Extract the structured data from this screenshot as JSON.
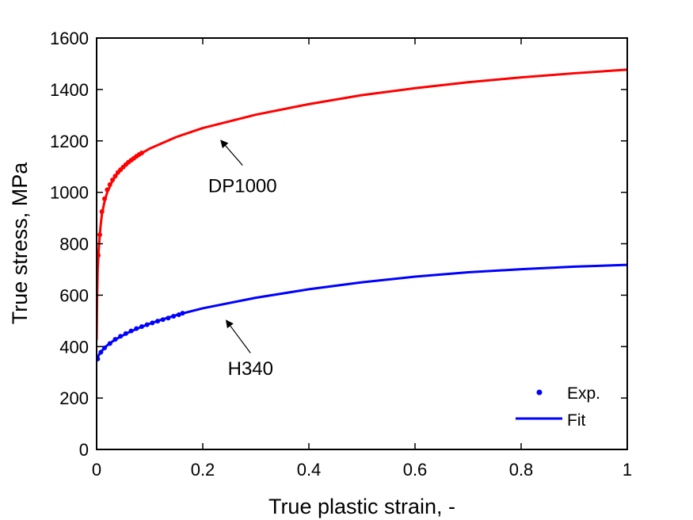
{
  "chart_data": {
    "type": "line",
    "title": "",
    "xlabel": "True plastic strain, -",
    "ylabel": "True stress, MPa",
    "xlim": [
      0,
      1
    ],
    "ylim": [
      0,
      1600
    ],
    "xticks": [
      0,
      0.2,
      0.4,
      0.6,
      0.8,
      1
    ],
    "xtick_labels": [
      "0",
      "0.2",
      "0.4",
      "0.6",
      "0.8",
      "1"
    ],
    "yticks": [
      0,
      200,
      400,
      600,
      800,
      1000,
      1200,
      1400,
      1600
    ],
    "ytick_labels": [
      "0",
      "200",
      "400",
      "600",
      "800",
      "1000",
      "1200",
      "1400",
      "1600"
    ],
    "grid": false,
    "legend": {
      "position": "bottom-right",
      "entries": [
        {
          "label": "Exp.",
          "marker": "dot",
          "color": "#0000ff"
        },
        {
          "label": "Fit",
          "marker": "line",
          "color": "#0000ff"
        }
      ]
    },
    "series": [
      {
        "name": "DP1000",
        "color": "#ff0000",
        "fit": [
          [
            0,
            425
          ],
          [
            0.001,
            600
          ],
          [
            0.002,
            700
          ],
          [
            0.004,
            780
          ],
          [
            0.006,
            835
          ],
          [
            0.008,
            880
          ],
          [
            0.01,
            915
          ],
          [
            0.015,
            965
          ],
          [
            0.02,
            1000
          ],
          [
            0.03,
            1045
          ],
          [
            0.04,
            1075
          ],
          [
            0.05,
            1098
          ],
          [
            0.06,
            1117
          ],
          [
            0.07,
            1132
          ],
          [
            0.08,
            1146
          ],
          [
            0.1,
            1170
          ],
          [
            0.15,
            1215
          ],
          [
            0.2,
            1250
          ],
          [
            0.3,
            1302
          ],
          [
            0.4,
            1343
          ],
          [
            0.5,
            1378
          ],
          [
            0.6,
            1405
          ],
          [
            0.7,
            1428
          ],
          [
            0.8,
            1447
          ],
          [
            0.9,
            1463
          ],
          [
            1.0,
            1477
          ]
        ],
        "exp": [
          [
            0.003,
            755
          ],
          [
            0.006,
            835
          ],
          [
            0.01,
            925
          ],
          [
            0.015,
            975
          ],
          [
            0.02,
            1010
          ],
          [
            0.025,
            1030
          ],
          [
            0.03,
            1048
          ],
          [
            0.035,
            1063
          ],
          [
            0.04,
            1077
          ],
          [
            0.045,
            1088
          ],
          [
            0.05,
            1098
          ],
          [
            0.055,
            1108
          ],
          [
            0.06,
            1117
          ],
          [
            0.065,
            1125
          ],
          [
            0.07,
            1132
          ],
          [
            0.075,
            1140
          ],
          [
            0.08,
            1147
          ],
          [
            0.085,
            1153
          ]
        ]
      },
      {
        "name": "H340",
        "color": "#0000ff",
        "fit": [
          [
            0,
            345
          ],
          [
            0.002,
            358
          ],
          [
            0.005,
            370
          ],
          [
            0.01,
            384
          ],
          [
            0.02,
            405
          ],
          [
            0.03,
            420
          ],
          [
            0.04,
            433
          ],
          [
            0.06,
            455
          ],
          [
            0.08,
            473
          ],
          [
            0.1,
            489
          ],
          [
            0.12,
            503
          ],
          [
            0.14,
            516
          ],
          [
            0.16,
            528
          ],
          [
            0.2,
            549
          ],
          [
            0.3,
            590
          ],
          [
            0.4,
            623
          ],
          [
            0.5,
            650
          ],
          [
            0.6,
            672
          ],
          [
            0.7,
            689
          ],
          [
            0.8,
            701
          ],
          [
            0.9,
            711
          ],
          [
            1.0,
            718
          ]
        ],
        "exp": [
          [
            0.002,
            352
          ],
          [
            0.008,
            378
          ],
          [
            0.015,
            395
          ],
          [
            0.025,
            412
          ],
          [
            0.035,
            428
          ],
          [
            0.045,
            440
          ],
          [
            0.055,
            451
          ],
          [
            0.065,
            461
          ],
          [
            0.075,
            470
          ],
          [
            0.085,
            478
          ],
          [
            0.095,
            485
          ],
          [
            0.105,
            492
          ],
          [
            0.115,
            499
          ],
          [
            0.125,
            505
          ],
          [
            0.135,
            511
          ],
          [
            0.145,
            518
          ],
          [
            0.155,
            524
          ],
          [
            0.162,
            530
          ]
        ]
      }
    ],
    "annotations": [
      {
        "text": "DP1000",
        "x": 0.275,
        "y": 1000,
        "arrow_from": [
          0.275,
          1105
        ],
        "arrow_to": [
          0.235,
          1200
        ]
      },
      {
        "text": "H340",
        "x": 0.29,
        "y": 290,
        "arrow_from": [
          0.29,
          375
        ],
        "arrow_to": [
          0.245,
          500
        ]
      }
    ]
  }
}
